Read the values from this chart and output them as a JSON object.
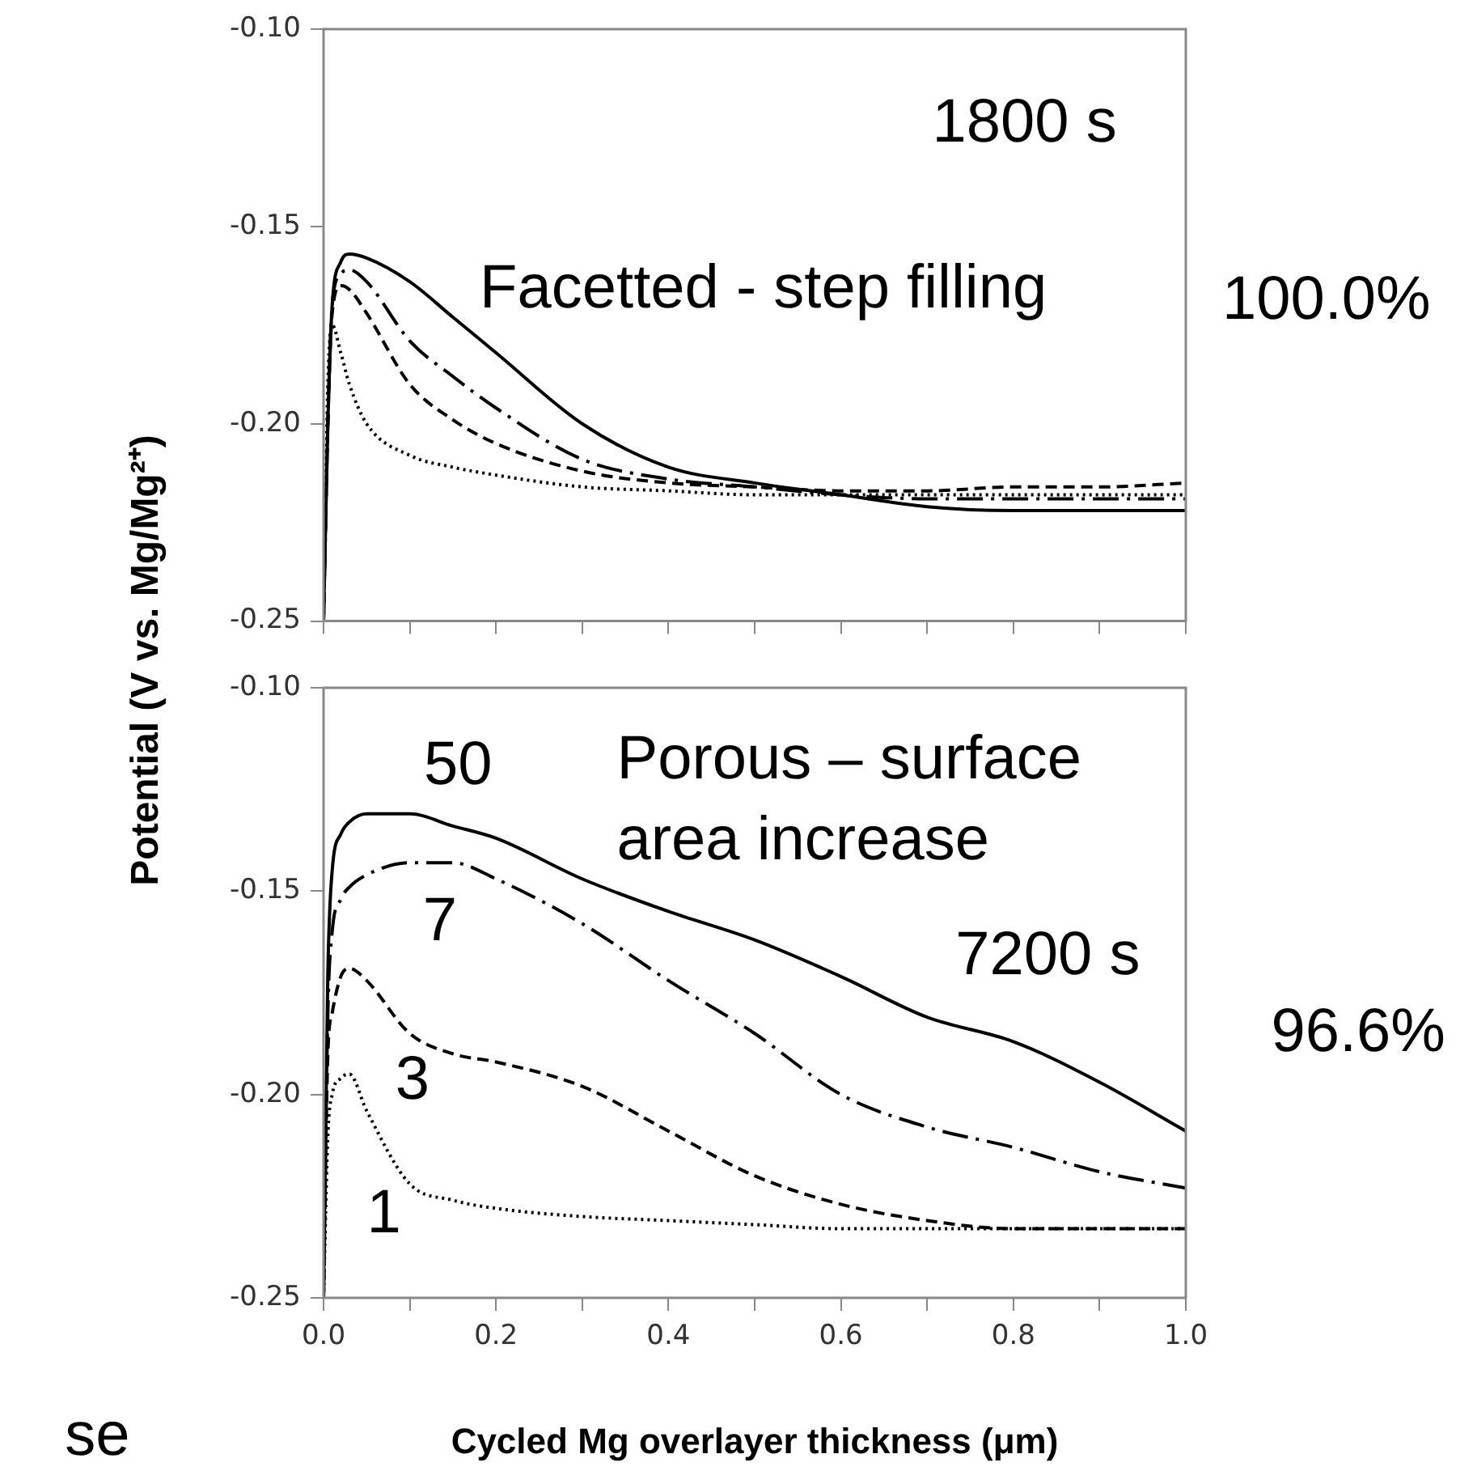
{
  "chart_data": [
    {
      "type": "line",
      "ylabel": "Potential (V vs. Mg/Mg²⁺)",
      "x": [
        0,
        0.005,
        0.01,
        0.02,
        0.03,
        0.05,
        0.1,
        0.15,
        0.2,
        0.3,
        0.4,
        0.5,
        0.6,
        0.7,
        0.8,
        0.9,
        1.0
      ],
      "series": [
        {
          "color": "#000000",
          "line_style": "solid",
          "values": [
            -0.25,
            -0.2,
            -0.17,
            -0.159,
            -0.157,
            -0.158,
            -0.164,
            -0.173,
            -0.182,
            -0.2,
            -0.211,
            -0.215,
            -0.218,
            -0.221,
            -0.222,
            -0.222,
            -0.222
          ]
        },
        {
          "color": "#000000",
          "line_style": "dashdot",
          "values": [
            -0.25,
            -0.2,
            -0.17,
            -0.162,
            -0.161,
            -0.164,
            -0.179,
            -0.188,
            -0.196,
            -0.209,
            -0.214,
            -0.216,
            -0.218,
            -0.219,
            -0.219,
            -0.219,
            -0.219
          ]
        },
        {
          "color": "#000000",
          "line_style": "dashed",
          "values": [
            -0.25,
            -0.2,
            -0.172,
            -0.165,
            -0.166,
            -0.172,
            -0.19,
            -0.199,
            -0.205,
            -0.212,
            -0.215,
            -0.216,
            -0.217,
            -0.217,
            -0.216,
            -0.216,
            -0.215
          ]
        },
        {
          "color": "#000000",
          "line_style": "dotted",
          "values": [
            -0.25,
            -0.19,
            -0.175,
            -0.182,
            -0.19,
            -0.2,
            -0.208,
            -0.211,
            -0.213,
            -0.216,
            -0.217,
            -0.218,
            -0.218,
            -0.218,
            -0.218,
            -0.218,
            -0.218
          ]
        }
      ],
      "xlim": [
        0,
        1
      ],
      "xticks": [
        {
          "value": 0,
          "label": null
        },
        {
          "value": 0.1,
          "label": null
        },
        {
          "value": 0.2,
          "label": null
        },
        {
          "value": 0.3,
          "label": null
        },
        {
          "value": 0.4,
          "label": null
        },
        {
          "value": 0.5,
          "label": null
        },
        {
          "value": 0.6,
          "label": null
        },
        {
          "value": 0.7,
          "label": null
        },
        {
          "value": 0.8,
          "label": null
        },
        {
          "value": 0.9,
          "label": null
        },
        {
          "value": 1,
          "label": null
        }
      ],
      "ylim": [
        -0.25,
        -0.1
      ],
      "yticks": [
        {
          "value": -0.25,
          "label": "-0.25"
        },
        {
          "value": -0.2,
          "label": "-0.20"
        },
        {
          "value": -0.15,
          "label": "-0.15"
        },
        {
          "value": -0.1,
          "label": "-0.10"
        }
      ],
      "tick_labels": "y",
      "grid": false,
      "legend": false,
      "marker": "none",
      "annotations": [
        "1800 s",
        "Facetted - step filling",
        "100.0%"
      ]
    },
    {
      "type": "line",
      "xlabel": "Cycled Mg overlayer thickness (μm)",
      "x": [
        0,
        0.005,
        0.01,
        0.02,
        0.03,
        0.05,
        0.1,
        0.15,
        0.2,
        0.3,
        0.4,
        0.5,
        0.6,
        0.7,
        0.8,
        0.9,
        1.0
      ],
      "series": [
        {
          "name": "50",
          "color": "#000000",
          "line_style": "solid",
          "values": [
            -0.25,
            -0.17,
            -0.145,
            -0.136,
            -0.133,
            -0.131,
            -0.131,
            -0.134,
            -0.137,
            -0.147,
            -0.155,
            -0.162,
            -0.171,
            -0.181,
            -0.187,
            -0.197,
            -0.209
          ]
        },
        {
          "name": "7",
          "color": "#000000",
          "line_style": "dashdot",
          "values": [
            -0.25,
            -0.18,
            -0.16,
            -0.152,
            -0.149,
            -0.146,
            -0.143,
            -0.143,
            -0.147,
            -0.158,
            -0.172,
            -0.185,
            -0.2,
            -0.208,
            -0.213,
            -0.219,
            -0.223
          ]
        },
        {
          "name": "3",
          "color": "#000000",
          "line_style": "dashed",
          "values": [
            -0.25,
            -0.19,
            -0.18,
            -0.171,
            -0.169,
            -0.172,
            -0.185,
            -0.19,
            -0.192,
            -0.198,
            -0.209,
            -0.22,
            -0.227,
            -0.231,
            -0.233,
            -0.233,
            -0.233
          ]
        },
        {
          "name": "1",
          "color": "#000000",
          "line_style": "dotted",
          "values": [
            -0.25,
            -0.21,
            -0.2,
            -0.196,
            -0.195,
            -0.204,
            -0.222,
            -0.226,
            -0.228,
            -0.23,
            -0.231,
            -0.232,
            -0.233,
            -0.233,
            -0.233,
            -0.233,
            -0.233
          ]
        }
      ],
      "xlim": [
        0,
        1
      ],
      "xticks": [
        {
          "value": 0,
          "label": "0.0"
        },
        {
          "value": 0.1,
          "label": null
        },
        {
          "value": 0.2,
          "label": "0.2"
        },
        {
          "value": 0.3,
          "label": null
        },
        {
          "value": 0.4,
          "label": "0.4"
        },
        {
          "value": 0.5,
          "label": null
        },
        {
          "value": 0.6,
          "label": "0.6"
        },
        {
          "value": 0.7,
          "label": null
        },
        {
          "value": 0.8,
          "label": "0.8"
        },
        {
          "value": 0.9,
          "label": null
        },
        {
          "value": 1,
          "label": "1.0"
        }
      ],
      "ylim": [
        -0.25,
        -0.1
      ],
      "yticks": [
        {
          "value": -0.25,
          "label": "-0.25"
        },
        {
          "value": -0.2,
          "label": "-0.20"
        },
        {
          "value": -0.15,
          "label": "-0.15"
        },
        {
          "value": -0.1,
          "label": "-0.10"
        }
      ],
      "grid": false,
      "legend": false,
      "marker": "none",
      "annotations": [
        "Porous – surface area increase",
        "7200 s",
        "96.6%",
        "se"
      ]
    }
  ]
}
